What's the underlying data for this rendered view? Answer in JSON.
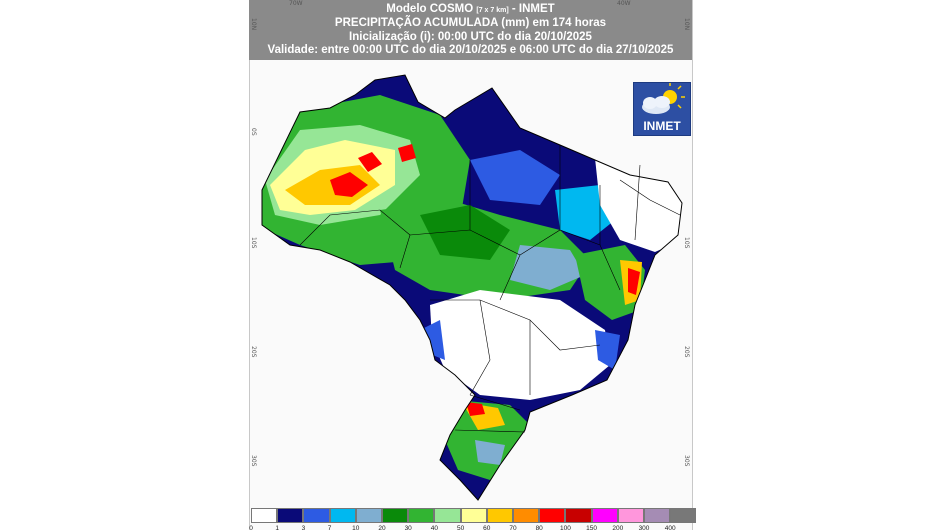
{
  "header": {
    "title_main": "Modelo COSMO",
    "title_res": "[7 x 7 km]",
    "title_org": "- INMET",
    "subtitle": "PRECIPITAÇÃO ACUMULADA (mm) em 174 horas",
    "init": "Inicialização (i): 00:00 UTC do dia 20/10/2025",
    "validity": "Validade: entre 00:00 UTC do dia 20/10/2025 e 06:00 UTC do dia 27/10/2025"
  },
  "axes": {
    "lon_top": [
      "70W",
      "40W"
    ],
    "lat_left": [
      "10N",
      "0S",
      "10S",
      "20S",
      "30S"
    ],
    "lat_right": [
      "10N",
      "0S",
      "10S",
      "20S",
      "30S"
    ]
  },
  "logo": {
    "text": "INMET",
    "icon": "sun-cloud-icon"
  },
  "legend": {
    "colors": [
      "#ffffff",
      "#0a0a78",
      "#2d5be3",
      "#00b8f0",
      "#7faed0",
      "#0a8a0a",
      "#32b432",
      "#96e696",
      "#ffff96",
      "#ffc800",
      "#ff8c00",
      "#ff0000",
      "#c80000",
      "#ff00ff",
      "#ff96dc",
      "#a58cb4",
      "#787878"
    ],
    "labels": [
      "0",
      "1",
      "3",
      "7",
      "10",
      "20",
      "30",
      "40",
      "50",
      "60",
      "70",
      "80",
      "100",
      "150",
      "200",
      "300",
      "400"
    ]
  },
  "colors": {
    "header_bg": "#8a8a8a",
    "dry": "#ffffff",
    "very_wet": "#0a0a78",
    "wet": "#2d5be3",
    "moderate": "#32b432",
    "heavy": "#ffc800",
    "extreme": "#ff0000"
  }
}
